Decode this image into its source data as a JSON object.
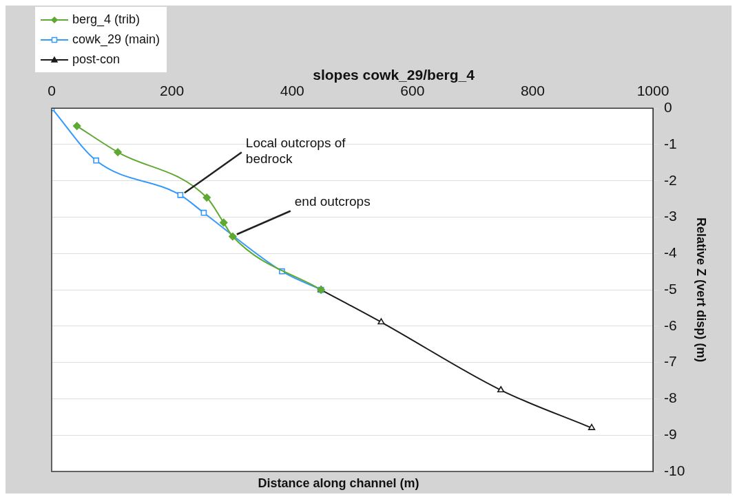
{
  "chart_data": {
    "type": "line",
    "title": "slopes cowk_29/berg_4",
    "xlabel": "Distance along channel (m)",
    "ylabel": "Relative Z (vert disp) (m)",
    "xlim": [
      0,
      1000
    ],
    "xticks": [
      0,
      200,
      400,
      600,
      800,
      1000
    ],
    "ylim": [
      -10,
      0
    ],
    "yticks": [
      0,
      -1,
      -2,
      -3,
      -4,
      -5,
      -6,
      -7,
      -8,
      -9,
      -10
    ],
    "grid": "y",
    "legend": "top left",
    "series": [
      {
        "name": "berg_4 (trib)",
        "color": "#5fa832",
        "marker": "diamond",
        "x": [
          42,
          110,
          258,
          286,
          301,
          448
        ],
        "values": [
          -0.49,
          -1.21,
          -2.46,
          -3.15,
          -3.53,
          -5.0
        ]
      },
      {
        "name": "cowk_29 (main)",
        "color": "#3399ff",
        "marker": "square",
        "x": [
          0,
          74,
          214,
          253,
          383,
          448
        ],
        "values": [
          0,
          -1.44,
          -2.39,
          -2.88,
          -4.49,
          -5.0
        ]
      },
      {
        "name": "post-con",
        "color": "#1a1a1a",
        "marker": "triangle",
        "x": [
          448,
          548,
          747,
          898
        ],
        "values": [
          -5.0,
          -5.89,
          -7.76,
          -8.8
        ]
      }
    ],
    "annotations": [
      {
        "text": "Local outcrops of\nbedrock",
        "x": 214,
        "y": -2.39
      },
      {
        "text": "end outcrops",
        "x": 301,
        "y": -3.53
      }
    ]
  }
}
